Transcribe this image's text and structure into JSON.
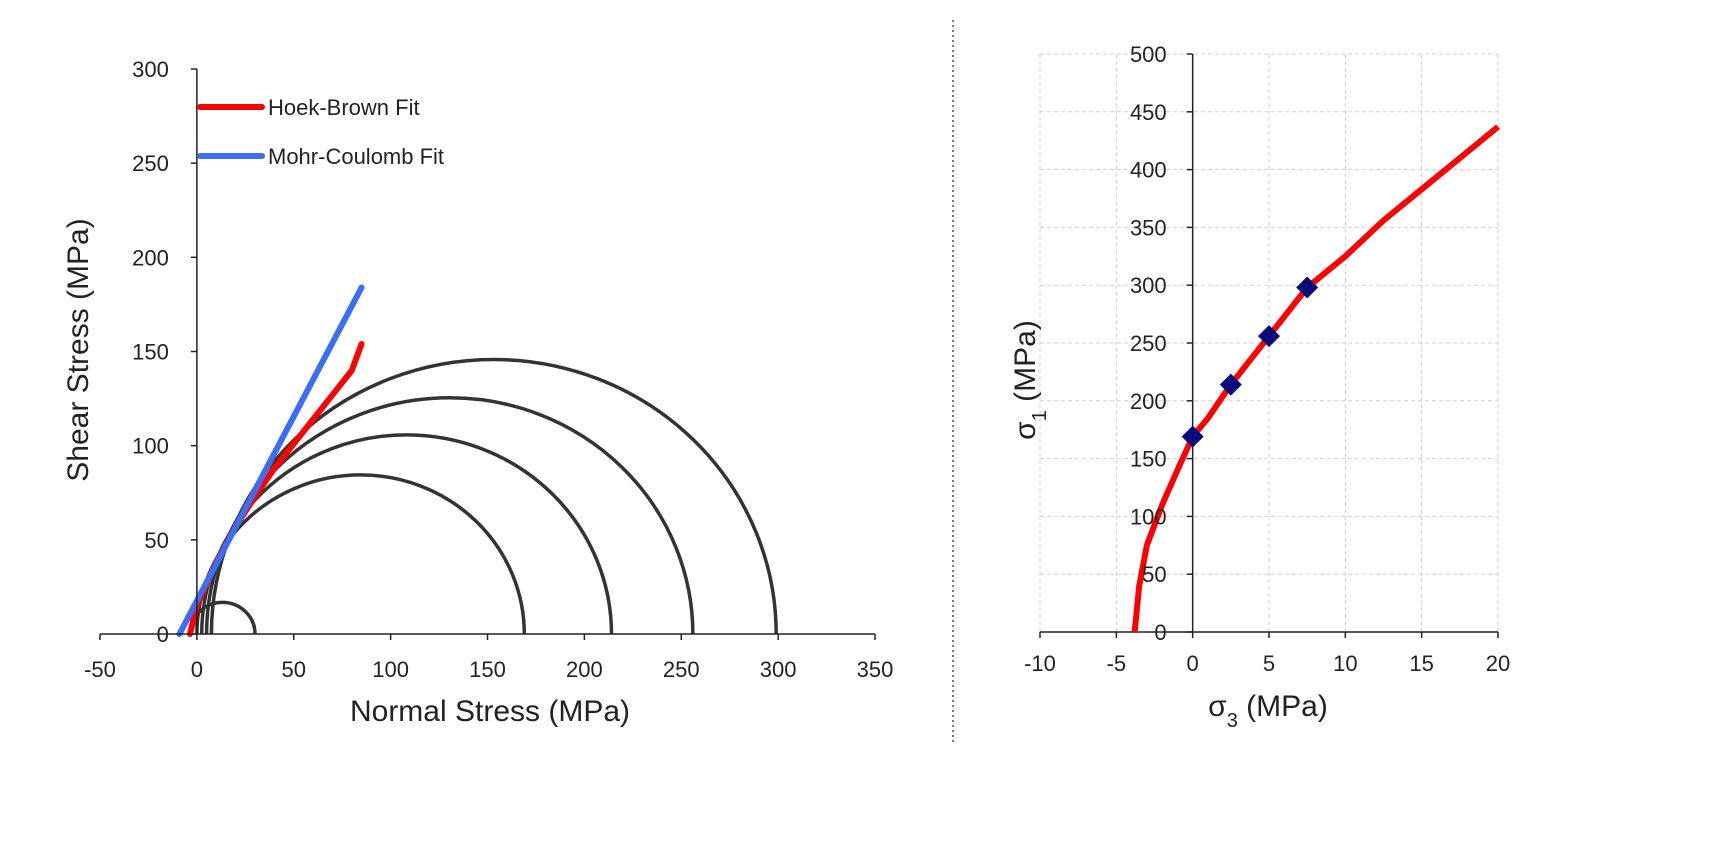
{
  "chart_data": [
    {
      "type": "line",
      "title": "",
      "xlabel": "Normal Stress (MPa)",
      "ylabel": "Shear Stress (MPa)",
      "xlim": [
        -50,
        350
      ],
      "ylim": [
        0,
        300
      ],
      "x_ticks": [
        -50,
        0,
        50,
        100,
        150,
        200,
        250,
        300,
        350
      ],
      "y_ticks": [
        0,
        50,
        100,
        150,
        200,
        250,
        300
      ],
      "grid": false,
      "legend": "top-left",
      "series": [
        {
          "name": "Hoek-Brown Fit",
          "color": "#ff0000",
          "points": [
            [
              -3.6,
              0
            ],
            [
              0,
              15
            ],
            [
              10,
              38
            ],
            [
              20,
              57
            ],
            [
              30,
              73
            ],
            [
              40,
              88
            ],
            [
              50,
              101
            ],
            [
              60,
              114
            ],
            [
              70,
              127
            ],
            [
              80,
              140
            ],
            [
              85,
              154
            ]
          ]
        },
        {
          "name": "Mohr-Coulomb Fit",
          "color": "#3b6ef5",
          "points": [
            [
              -9,
              0
            ],
            [
              85,
              184
            ]
          ]
        }
      ],
      "mohr_circles": {
        "color": "#333333",
        "circles": [
          {
            "sigma3": -3.6,
            "sigma1": 30
          },
          {
            "sigma3": 0,
            "sigma1": 169
          },
          {
            "sigma3": 2.5,
            "sigma1": 214
          },
          {
            "sigma3": 5,
            "sigma1": 256
          },
          {
            "sigma3": 7.5,
            "sigma1": 299
          }
        ]
      }
    },
    {
      "type": "line",
      "title": "",
      "xlabel": "σ3 (MPa)",
      "ylabel": "σ1 (MPa)",
      "xlabel_parts": {
        "sym": "σ",
        "sub": "3",
        "rest": " (MPa)"
      },
      "ylabel_parts": {
        "sym": "σ",
        "sub": "1",
        "rest": " (MPa)"
      },
      "xlim": [
        -10,
        20
      ],
      "ylim": [
        0,
        500
      ],
      "x_ticks": [
        -10,
        -5,
        0,
        5,
        10,
        15,
        20
      ],
      "y_ticks": [
        0,
        50,
        100,
        150,
        200,
        250,
        300,
        350,
        400,
        450,
        500
      ],
      "grid": true,
      "series": [
        {
          "name": "",
          "kind": "line",
          "color": "#ff0000",
          "x": [
            -3.8,
            -3.5,
            -3,
            -2,
            -1,
            0,
            1,
            2.5,
            5,
            7.5,
            10,
            12.5,
            15,
            17.5,
            20
          ],
          "y": [
            0,
            40,
            75,
            110,
            140,
            169,
            185,
            214,
            256,
            298,
            325,
            356,
            383,
            410,
            437
          ]
        },
        {
          "name": "",
          "kind": "marker",
          "marker": "diamond",
          "color": "#0a0a7a",
          "x": [
            0,
            2.5,
            5,
            7.5
          ],
          "y": [
            169,
            214,
            256,
            298
          ]
        }
      ]
    }
  ]
}
